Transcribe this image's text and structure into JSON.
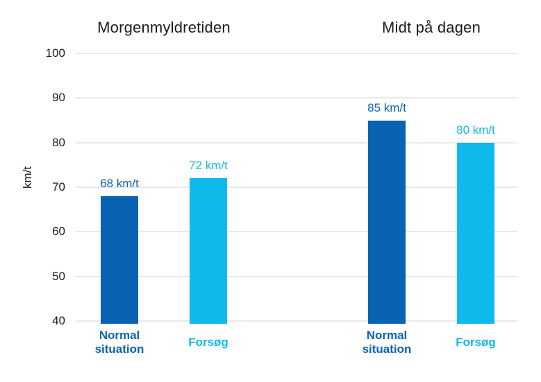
{
  "chart_data": {
    "type": "bar",
    "ylabel": "km/t",
    "ylim": [
      40,
      100
    ],
    "yticks": [
      40,
      50,
      60,
      70,
      80,
      90,
      100
    ],
    "grid": true,
    "legend": "none",
    "groups": [
      {
        "title": "Morgenmyldretiden",
        "bars": [
          {
            "category": "Normal situation",
            "value": 68,
            "value_label": "68 km/t",
            "color": "#0A62B2"
          },
          {
            "category": "Forsøg",
            "value": 72,
            "value_label": "72 km/t",
            "color": "#10B9EC"
          }
        ]
      },
      {
        "title": "Midt på dagen",
        "bars": [
          {
            "category": "Normal situation",
            "value": 85,
            "value_label": "85 km/t",
            "color": "#0A62B2"
          },
          {
            "category": "Forsøg",
            "value": 80,
            "value_label": "80 km/t",
            "color": "#10B9EC"
          }
        ]
      }
    ],
    "colors": {
      "normal_situation": "#0A62B2",
      "forsoeg": "#10B9EC",
      "gridline": "#E9E9E9",
      "axis_text": "#1A1A1A"
    }
  }
}
